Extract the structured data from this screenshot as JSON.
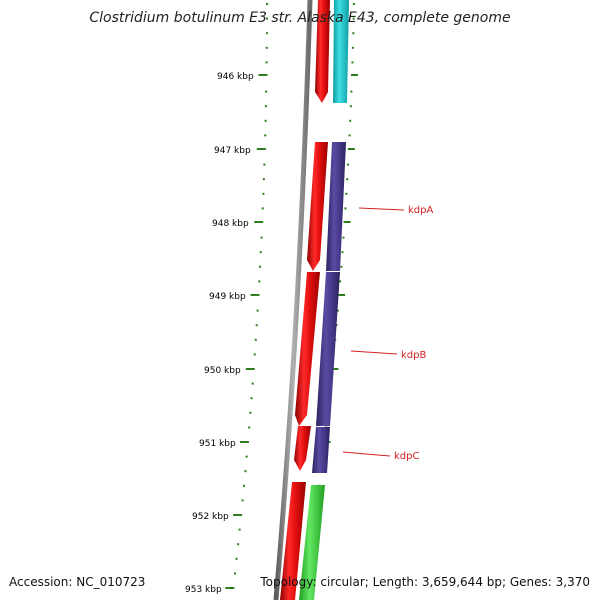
{
  "title": "Clostridium botulinum E3 str. Alaska E43, complete genome",
  "footer": {
    "accession": "Accession: NC_010723",
    "topology": "Topology: circular; Length: 3,659,644 bp; Genes: 3,370"
  },
  "ruler": {
    "labels": [
      "946 kbp",
      "947 kbp",
      "948 kbp",
      "949 kbp",
      "950 kbp",
      "951 kbp",
      "952 kbp",
      "953 kbp"
    ],
    "label_color": "#000000",
    "tick_color": "#2e7d1e"
  },
  "backbone_color": "#8a8a8a",
  "gene_labels": [
    {
      "name": "kdpA",
      "color": "#d42020"
    },
    {
      "name": "kdpB",
      "color": "#d42020"
    },
    {
      "name": "kdpC",
      "color": "#d42020"
    }
  ],
  "tracks": {
    "inner_color": "#e21414",
    "outer_colors": {
      "cyan": "#1fc8cc",
      "purple": "#4a3b8c",
      "green": "#3ccc3c"
    }
  }
}
